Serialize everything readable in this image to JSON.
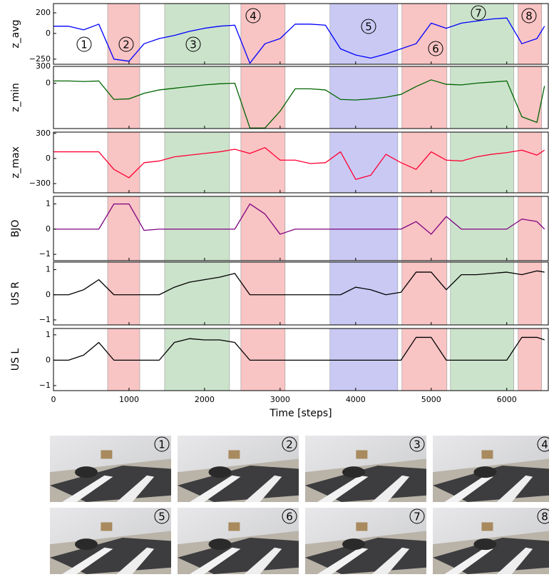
{
  "chart_data": {
    "type": "line",
    "xlabel": "Time [steps]",
    "xlim": [
      0,
      6550
    ],
    "xticks": [
      0,
      1000,
      2000,
      3000,
      4000,
      5000,
      6000
    ],
    "x": [
      0,
      200,
      400,
      600,
      800,
      1000,
      1200,
      1400,
      1600,
      1800,
      2000,
      2200,
      2400,
      2600,
      2800,
      3000,
      3200,
      3400,
      3600,
      3800,
      4000,
      4200,
      4400,
      4600,
      4800,
      5000,
      5200,
      5400,
      5600,
      5800,
      6000,
      6200,
      6400,
      6500
    ],
    "regions": [
      {
        "start": 717,
        "end": 1142,
        "color": "#f9c4c4"
      },
      {
        "start": 1472,
        "end": 2330,
        "color": "#cbe3cb"
      },
      {
        "start": 2481,
        "end": 3066,
        "color": "#f9c4c4"
      },
      {
        "start": 3660,
        "end": 4557,
        "color": "#c9c9f4"
      },
      {
        "start": 4613,
        "end": 5208,
        "color": "#f9c4c4"
      },
      {
        "start": 5255,
        "end": 6094,
        "color": "#cbe3cb"
      },
      {
        "start": 6151,
        "end": 6462,
        "color": "#f9c4c4"
      }
    ],
    "annotations": [
      "1",
      "2",
      "3",
      "4",
      "5",
      "6",
      "7",
      "8"
    ],
    "panels": [
      {
        "ylabel": "z_avg",
        "color": "#0000ff",
        "ylim": [
          -300,
          290
        ],
        "yticks": [
          {
            "value": -250,
            "label": "−250"
          },
          0,
          200
        ],
        "values": [
          70,
          70,
          35,
          90,
          -250,
          -270,
          -100,
          -50,
          -20,
          20,
          50,
          70,
          80,
          -290,
          -100,
          -50,
          90,
          90,
          80,
          -150,
          -210,
          -240,
          -200,
          -150,
          -100,
          100,
          50,
          100,
          120,
          140,
          150,
          -100,
          -50,
          70
        ]
      },
      {
        "ylabel": "z_min",
        "color": "#006400",
        "ylim": [
          -810,
          300
        ],
        "yticks": [
          0,
          300
        ],
        "values": [
          40,
          40,
          30,
          40,
          -290,
          -280,
          -180,
          -120,
          -90,
          -60,
          -30,
          -10,
          0,
          -800,
          -800,
          -500,
          -100,
          -100,
          -120,
          -290,
          -300,
          -280,
          -250,
          -200,
          -60,
          60,
          -20,
          -30,
          0,
          20,
          40,
          -600,
          -700,
          -50
        ]
      },
      {
        "ylabel": "z_max",
        "color": "#ff0033",
        "ylim": [
          -410,
          315
        ],
        "yticks": [
          {
            "value": -300,
            "label": "−300"
          },
          0,
          300
        ],
        "values": [
          80,
          80,
          80,
          80,
          -130,
          -230,
          -50,
          -30,
          20,
          40,
          60,
          80,
          110,
          60,
          130,
          -20,
          -20,
          -60,
          -50,
          80,
          -250,
          -200,
          50,
          -50,
          -130,
          80,
          -20,
          -30,
          20,
          50,
          70,
          100,
          40,
          100
        ]
      },
      {
        "ylabel": "BJO",
        "color": "#800080",
        "ylim": [
          -1.25,
          1.3
        ],
        "yticks": [
          {
            "value": -1,
            "label": "−1"
          },
          0,
          1
        ],
        "values": [
          0,
          0,
          0,
          0,
          1,
          1,
          -0.05,
          0,
          0,
          0,
          0,
          0,
          0,
          1,
          0.6,
          -0.2,
          0,
          0,
          0,
          0,
          0,
          0,
          0,
          0,
          0.3,
          -0.2,
          0.5,
          0,
          0,
          0,
          0,
          0.4,
          0.3,
          0
        ]
      },
      {
        "ylabel": "US R",
        "color": "#000000",
        "ylim": [
          -1.2,
          1.3
        ],
        "yticks": [
          {
            "value": -1,
            "label": "−1"
          },
          0,
          1
        ],
        "values": [
          0,
          0,
          0.2,
          0.6,
          0,
          0,
          0,
          0,
          0.3,
          0.5,
          0.6,
          0.7,
          0.85,
          0,
          0,
          0,
          0,
          0,
          0,
          0,
          0.3,
          0.2,
          0,
          0.1,
          0.9,
          0.9,
          0.2,
          0.8,
          0.8,
          0.85,
          0.9,
          0.8,
          0.95,
          0.9
        ]
      },
      {
        "ylabel": "US L",
        "color": "#000000",
        "ylim": [
          -1.2,
          1.25
        ],
        "yticks": [
          {
            "value": -1,
            "label": "−1"
          },
          0,
          1
        ],
        "values": [
          0,
          0,
          0.2,
          0.7,
          0,
          0,
          0,
          0,
          0.7,
          0.85,
          0.8,
          0.8,
          0.7,
          0,
          0,
          0,
          0,
          0,
          0,
          0,
          0,
          0,
          0,
          0,
          0.9,
          0.9,
          0,
          0,
          0,
          0,
          0,
          0.9,
          0.9,
          0.8
        ]
      }
    ]
  },
  "photos": [
    "1",
    "2",
    "3",
    "4",
    "5",
    "6",
    "7",
    "8"
  ]
}
